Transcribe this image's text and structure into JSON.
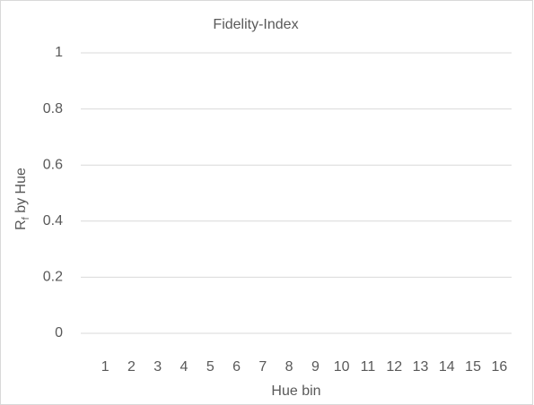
{
  "chart_data": {
    "type": "line",
    "title": "Fidelity-Index",
    "xlabel": "Hue bin",
    "ylabel": {
      "main": "R",
      "subscript": "f",
      "rest": " by Hue"
    },
    "categories": [
      "1",
      "2",
      "3",
      "4",
      "5",
      "6",
      "7",
      "8",
      "9",
      "10",
      "11",
      "12",
      "13",
      "14",
      "15",
      "16"
    ],
    "ylim": [
      0,
      1
    ],
    "yticks": [
      0,
      0.2,
      0.4,
      0.6,
      0.8,
      1
    ],
    "grid": true
  }
}
